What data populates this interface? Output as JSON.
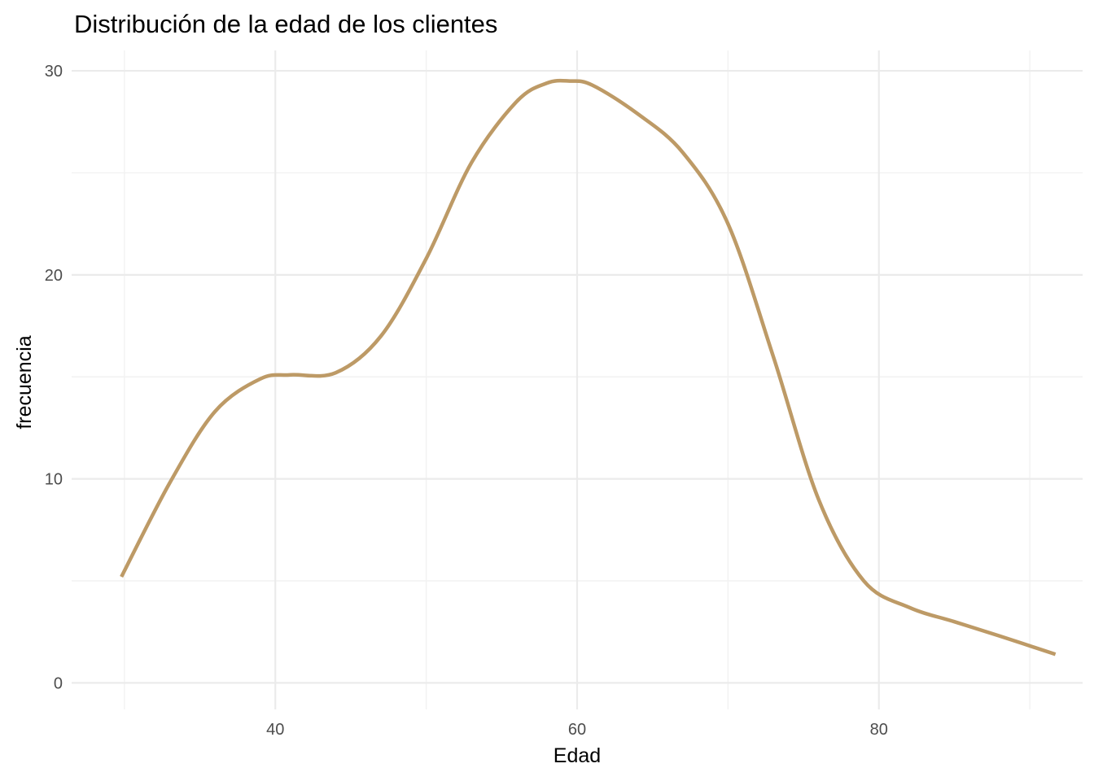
{
  "chart_data": {
    "type": "line",
    "title": "Distribución de la edad de los clientes",
    "xlabel": "Edad",
    "ylabel": "frecuencia",
    "xlim": [
      26.5,
      93.5
    ],
    "ylim": [
      -1.3,
      31
    ],
    "x_ticks": [
      40,
      60,
      80
    ],
    "x_tick_labels": [
      "40",
      "60",
      "80"
    ],
    "y_ticks": [
      0,
      10,
      20,
      30
    ],
    "y_tick_labels": [
      "0",
      "10",
      "20",
      "30"
    ],
    "grid": true,
    "line_color": "#bd9a66",
    "series": [
      {
        "x": [
          29.8,
          33,
          36,
          39,
          41,
          44,
          47,
          50,
          53,
          56,
          58,
          59.5,
          61,
          64,
          67,
          70,
          73,
          76,
          79,
          82,
          85,
          88,
          91.7
        ],
        "values": [
          5.2,
          9.8,
          13.3,
          14.9,
          15.1,
          15.2,
          17.0,
          20.8,
          25.5,
          28.5,
          29.4,
          29.5,
          29.3,
          27.9,
          26.0,
          22.5,
          16.0,
          9.0,
          5.0,
          3.7,
          3.0,
          2.3,
          1.4
        ]
      }
    ]
  }
}
